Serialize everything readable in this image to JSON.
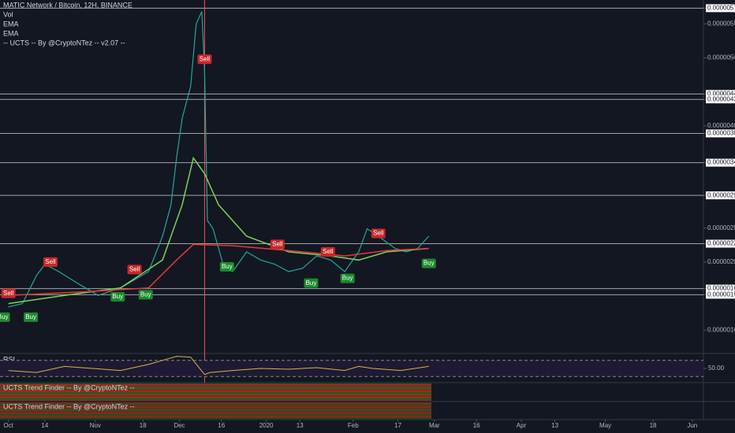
{
  "chart_data": {
    "type": "line",
    "title": "MATIC Network / Bitcoin, 12H, BINANCE",
    "legend_items": [
      "Vol",
      "EMA",
      "EMA",
      "-- UCTS -- By @CryptoNTez -- v2.07 --"
    ],
    "xlim": [
      -3,
      248
    ],
    "xticks": [
      {
        "value": 0,
        "label": "Oct"
      },
      {
        "value": 13,
        "label": "14"
      },
      {
        "value": 31,
        "label": "Nov"
      },
      {
        "value": 48,
        "label": "18"
      },
      {
        "value": 61,
        "label": "Dec"
      },
      {
        "value": 76,
        "label": "16"
      },
      {
        "value": 92,
        "label": "2020"
      },
      {
        "value": 104,
        "label": "13"
      },
      {
        "value": 123,
        "label": "Feb"
      },
      {
        "value": 139,
        "label": "17"
      },
      {
        "value": 152,
        "label": "Mar"
      },
      {
        "value": 167,
        "label": "16"
      },
      {
        "value": 183,
        "label": "Apr"
      },
      {
        "value": 195,
        "label": "13"
      },
      {
        "value": 213,
        "label": "May"
      },
      {
        "value": 230,
        "label": "18"
      },
      {
        "value": 244,
        "label": "Jun"
      }
    ],
    "ylim": [
      6.8e-07,
      5.85e-06
    ],
    "yticks": [
      {
        "value": 5.73e-06,
        "label": "0.00000573"
      },
      {
        "value": 5.5e-06,
        "label": "0.00000550"
      },
      {
        "value": 5e-06,
        "label": "0.00000500"
      },
      {
        "value": 4.47e-06,
        "label": "0.00000447"
      },
      {
        "value": 4.39e-06,
        "label": "0.00000439"
      },
      {
        "value": 4e-06,
        "label": "0.00000400"
      },
      {
        "value": 3.89e-06,
        "label": "0.00000389"
      },
      {
        "value": 3.46e-06,
        "label": "0.00000346"
      },
      {
        "value": 2.98e-06,
        "label": "0.00000298"
      },
      {
        "value": 2.5e-06,
        "label": "0.00000250"
      },
      {
        "value": 2.27e-06,
        "label": "0.00000227"
      },
      {
        "value": 2e-06,
        "label": "0.00000200"
      },
      {
        "value": 1.61e-06,
        "label": "0.00000161"
      },
      {
        "value": 1.52e-06,
        "label": "0.00000152"
      },
      {
        "value": 1e-06,
        "label": "0.00000100"
      }
    ],
    "levels": [
      5.73e-06,
      4.47e-06,
      4.39e-06,
      3.89e-06,
      3.46e-06,
      2.98e-06,
      2.27e-06,
      1.61e-06,
      1.52e-06
    ],
    "price": {
      "color": "#26a69a",
      "x": [
        0,
        5,
        10,
        13,
        18,
        25,
        32,
        40,
        45,
        50,
        55,
        58,
        60,
        62,
        65,
        67,
        69,
        70,
        71,
        73,
        77,
        80,
        85,
        90,
        95,
        100,
        105,
        110,
        115,
        120,
        125,
        128,
        132,
        138,
        142,
        146,
        150
      ],
      "values": [
        1.34e-06,
        1.39e-06,
        1.8e-06,
        1.97e-06,
        1.86e-06,
        1.68e-06,
        1.51e-06,
        1.62e-06,
        1.74e-06,
        1.86e-06,
        2.38e-06,
        2.84e-06,
        3.53e-06,
        4.11e-06,
        4.58e-06,
        5.5e-06,
        5.68e-06,
        4.81e-06,
        2.61e-06,
        2.49e-06,
        1.91e-06,
        1.86e-06,
        2.15e-06,
        2.03e-06,
        1.97e-06,
        1.86e-06,
        1.91e-06,
        2.09e-06,
        2.03e-06,
        1.86e-06,
        2.15e-06,
        2.49e-06,
        2.38e-06,
        2.2e-06,
        2.15e-06,
        2.2e-06,
        2.38e-06
      ]
    },
    "series": [
      {
        "name": "EMA",
        "color": "#7cd35a",
        "x": [
          0,
          20,
          40,
          55,
          62,
          66,
          70,
          75,
          85,
          100,
          115,
          125,
          135,
          150
        ],
        "values": [
          1.39e-06,
          1.51e-06,
          1.62e-06,
          2.03e-06,
          2.84e-06,
          3.53e-06,
          3.3e-06,
          2.84e-06,
          2.38e-06,
          2.15e-06,
          2.09e-06,
          2.03e-06,
          2.15e-06,
          2.2e-06
        ]
      },
      {
        "name": "EMA",
        "color": "#e53935",
        "x": [
          0,
          30,
          50,
          60,
          66,
          80,
          100,
          120,
          135,
          150
        ],
        "values": [
          1.51e-06,
          1.57e-06,
          1.62e-06,
          2.03e-06,
          2.26e-06,
          2.24e-06,
          2.17e-06,
          2.09e-06,
          2.17e-06,
          2.2e-06
        ]
      }
    ],
    "signals": [
      {
        "label": "Sell",
        "x": 0,
        "price": 1.54e-06
      },
      {
        "label": "Sell",
        "x": 15,
        "price": 2e-06
      },
      {
        "label": "Sell",
        "x": 45,
        "price": 1.89e-06
      },
      {
        "label": "Sell",
        "x": 70,
        "price": 4.98e-06
      },
      {
        "label": "Sell",
        "x": 96,
        "price": 2.26e-06
      },
      {
        "label": "Sell",
        "x": 114,
        "price": 2.15e-06
      },
      {
        "label": "Sell",
        "x": 132,
        "price": 2.42e-06
      },
      {
        "label": "Buy",
        "x": -2,
        "price": 1.19e-06
      },
      {
        "label": "Buy",
        "x": 8,
        "price": 1.19e-06
      },
      {
        "label": "Buy",
        "x": 39,
        "price": 1.49e-06
      },
      {
        "label": "Buy",
        "x": 49,
        "price": 1.52e-06
      },
      {
        "label": "Buy",
        "x": 78,
        "price": 1.93e-06
      },
      {
        "label": "Buy",
        "x": 108,
        "price": 1.69e-06
      },
      {
        "label": "Buy",
        "x": 121,
        "price": 1.76e-06
      },
      {
        "label": "Buy",
        "x": 150,
        "price": 1.98e-06
      }
    ],
    "rsi": {
      "label": "RSI",
      "color": "#d4b44a",
      "ylim": [
        15,
        85
      ],
      "bands": [
        70,
        30
      ],
      "yticks": [
        {
          "value": 50,
          "label": "50.00"
        }
      ],
      "x": [
        0,
        10,
        20,
        30,
        40,
        50,
        55,
        60,
        65,
        70,
        72,
        80,
        90,
        100,
        110,
        120,
        125,
        130,
        140,
        150
      ],
      "values": [
        45,
        40,
        55,
        50,
        45,
        60,
        70,
        80,
        78,
        35,
        40,
        45,
        50,
        48,
        52,
        45,
        55,
        50,
        45,
        55
      ]
    },
    "indicator_panels": [
      "UCTS Trend Finder -- By @CryptoNTez --",
      "UCTS Trend Finder -- By @CryptoNTez --"
    ]
  }
}
